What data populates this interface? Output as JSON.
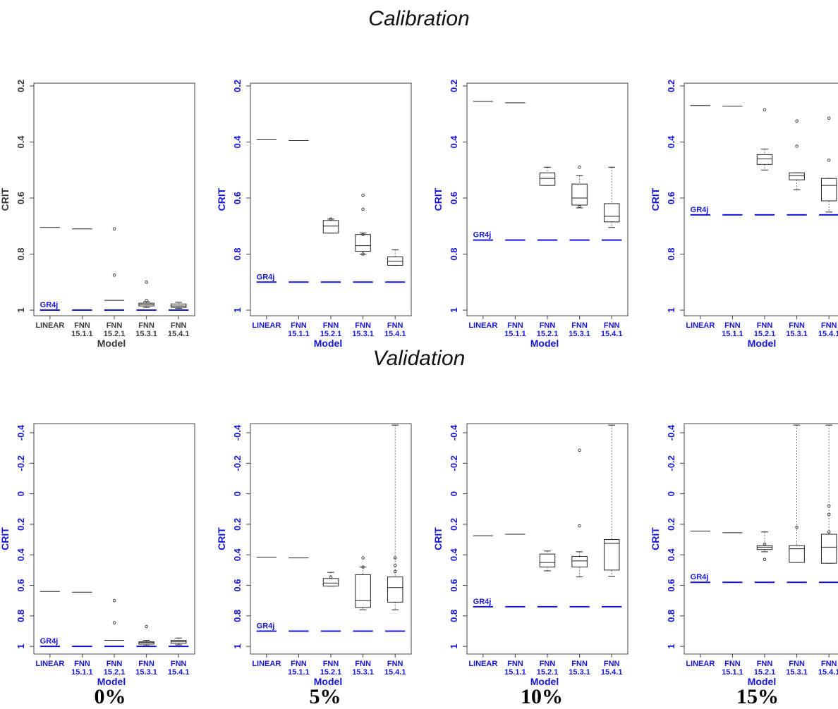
{
  "titles": {
    "calibration": "Calibration",
    "validation": "Validation"
  },
  "percent_labels": [
    "0%",
    "5%",
    "10%",
    "15%"
  ],
  "colors": {
    "blue": "#1515d8",
    "dark": "#3a3a3a",
    "box": "#222222"
  },
  "chart_data": [
    {
      "type": "box",
      "row": "Calibration",
      "percent": "0%",
      "ylabel": "CRIT",
      "xlabel": "Model",
      "label_color": "dark",
      "y_reversed": true,
      "ylim": [
        0.19,
        1.02
      ],
      "yticks": [
        0.2,
        0.4,
        0.6,
        0.8,
        1
      ],
      "ytick_labels": [
        "0.2",
        "0.4",
        "0.6",
        "0.8",
        "1"
      ],
      "categories": [
        "LINEAR",
        "FNN\n15.1.1",
        "FNN\n15.2.1",
        "FNN\n15.3.1",
        "FNN\n15.4.1"
      ],
      "reference": {
        "name": "GR4j",
        "value": 1.0
      },
      "boxes": [
        {
          "line": 0.705
        },
        {
          "line": 0.71
        },
        {
          "line": 0.965,
          "outliers": [
            0.71,
            0.875
          ]
        },
        {
          "q1": 0.975,
          "median": 0.98,
          "q3": 0.985,
          "whislo": 0.97,
          "whishi": 0.99,
          "outliers": [
            0.9,
            0.965
          ]
        },
        {
          "q1": 0.978,
          "median": 0.985,
          "q3": 0.99,
          "whislo": 0.972,
          "whishi": 0.994
        }
      ]
    },
    {
      "type": "box",
      "row": "Calibration",
      "percent": "5%",
      "ylabel": "CRIT",
      "xlabel": "Model",
      "label_color": "blue",
      "y_reversed": true,
      "ylim": [
        0.19,
        1.02
      ],
      "yticks": [
        0.2,
        0.4,
        0.6,
        0.8,
        1
      ],
      "ytick_labels": [
        "0.2",
        "0.4",
        "0.6",
        "0.8",
        "1"
      ],
      "categories": [
        "LINEAR",
        "FNN\n15.1.1",
        "FNN\n15.2.1",
        "FNN\n15.3.1",
        "FNN\n15.4.1"
      ],
      "reference": {
        "name": "GR4j",
        "value": 0.9
      },
      "boxes": [
        {
          "line": 0.39
        },
        {
          "line": 0.395
        },
        {
          "q1": 0.68,
          "median": 0.7,
          "q3": 0.725,
          "whislo": 0.675,
          "whishi": 0.725,
          "outliers": [
            0.675
          ]
        },
        {
          "q1": 0.73,
          "median": 0.77,
          "q3": 0.79,
          "whislo": 0.725,
          "whishi": 0.8,
          "outliers": [
            0.59,
            0.64,
            0.73,
            0.8
          ]
        },
        {
          "q1": 0.81,
          "median": 0.825,
          "q3": 0.84,
          "whislo": 0.785,
          "whishi": 0.84
        }
      ]
    },
    {
      "type": "box",
      "row": "Calibration",
      "percent": "10%",
      "ylabel": "CRIT",
      "xlabel": "Model",
      "label_color": "blue",
      "y_reversed": true,
      "ylim": [
        0.19,
        1.02
      ],
      "yticks": [
        0.2,
        0.4,
        0.6,
        0.8,
        1
      ],
      "ytick_labels": [
        "0.2",
        "0.4",
        "0.6",
        "0.8",
        "1"
      ],
      "categories": [
        "LINEAR",
        "FNN\n15.1.1",
        "FNN\n15.2.1",
        "FNN\n15.3.1",
        "FNN\n15.4.1"
      ],
      "reference": {
        "name": "GR4j",
        "value": 0.75
      },
      "boxes": [
        {
          "line": 0.255
        },
        {
          "line": 0.26
        },
        {
          "q1": 0.51,
          "median": 0.53,
          "q3": 0.555,
          "whislo": 0.49,
          "whishi": 0.555
        },
        {
          "q1": 0.55,
          "median": 0.6,
          "q3": 0.625,
          "whislo": 0.52,
          "whishi": 0.635,
          "outliers": [
            0.49,
            0.63
          ]
        },
        {
          "q1": 0.62,
          "median": 0.665,
          "q3": 0.685,
          "whislo": 0.49,
          "whishi": 0.705
        }
      ]
    },
    {
      "type": "box",
      "row": "Calibration",
      "percent": "15%",
      "ylabel": "CRIT",
      "xlabel": "Model",
      "label_color": "blue",
      "y_reversed": true,
      "ylim": [
        0.19,
        1.02
      ],
      "yticks": [
        0.2,
        0.4,
        0.6,
        0.8,
        1
      ],
      "ytick_labels": [
        "0.2",
        "0.4",
        "0.6",
        "0.8",
        "1"
      ],
      "categories": [
        "LINEAR",
        "FNN\n15.1.1",
        "FNN\n15.2.1",
        "FNN\n15.3.1",
        "FNN\n15.4.1"
      ],
      "reference": {
        "name": "GR4j",
        "value": 0.66
      },
      "boxes": [
        {
          "line": 0.27
        },
        {
          "line": 0.272
        },
        {
          "q1": 0.445,
          "median": 0.46,
          "q3": 0.48,
          "whislo": 0.425,
          "whishi": 0.5,
          "outliers": [
            0.285
          ]
        },
        {
          "q1": 0.51,
          "median": 0.52,
          "q3": 0.535,
          "whislo": 0.51,
          "whishi": 0.57,
          "outliers": [
            0.325,
            0.415
          ]
        },
        {
          "q1": 0.53,
          "median": 0.555,
          "q3": 0.61,
          "whislo": 0.53,
          "whishi": 0.65,
          "outliers": [
            0.315,
            0.465
          ]
        }
      ]
    },
    {
      "type": "box",
      "row": "Validation",
      "percent": "0%",
      "ylabel": "CRIT",
      "xlabel": "Model",
      "label_color": "blue",
      "y_reversed": true,
      "ylim": [
        -0.46,
        1.05
      ],
      "yticks": [
        -0.4,
        -0.2,
        0,
        0.2,
        0.4,
        0.6,
        0.8,
        1
      ],
      "ytick_labels": [
        "-0.4",
        "-0.2",
        "0",
        "0.2",
        "0.4",
        "0.6",
        "0.8",
        "1"
      ],
      "categories": [
        "LINEAR",
        "FNN\n15.1.1",
        "FNN\n15.2.1",
        "FNN\n15.3.1",
        "FNN\n15.4.1"
      ],
      "reference": {
        "name": "GR4j",
        "value": 1.0
      },
      "boxes": [
        {
          "line": 0.64
        },
        {
          "line": 0.645
        },
        {
          "line": 0.96,
          "outliers": [
            0.7,
            0.845
          ]
        },
        {
          "q1": 0.97,
          "median": 0.975,
          "q3": 0.985,
          "whislo": 0.96,
          "whishi": 0.995,
          "outliers": [
            0.87
          ]
        },
        {
          "q1": 0.96,
          "median": 0.97,
          "q3": 0.98,
          "whislo": 0.945,
          "whishi": 0.99
        }
      ]
    },
    {
      "type": "box",
      "row": "Validation",
      "percent": "5%",
      "ylabel": "CRIT",
      "xlabel": "Model",
      "label_color": "blue",
      "y_reversed": true,
      "ylim": [
        -0.46,
        1.05
      ],
      "yticks": [
        -0.4,
        -0.2,
        0,
        0.2,
        0.4,
        0.6,
        0.8,
        1
      ],
      "ytick_labels": [
        "-0.4",
        "-0.2",
        "0",
        "0.2",
        "0.4",
        "0.6",
        "0.8",
        "1"
      ],
      "categories": [
        "LINEAR",
        "FNN\n15.1.1",
        "FNN\n15.2.1",
        "FNN\n15.3.1",
        "FNN\n15.4.1"
      ],
      "reference": {
        "name": "GR4j",
        "value": 0.9
      },
      "boxes": [
        {
          "line": 0.415
        },
        {
          "line": 0.42
        },
        {
          "q1": 0.555,
          "median": 0.585,
          "q3": 0.605,
          "whislo": 0.515,
          "whishi": 0.605,
          "outliers": [
            0.545
          ]
        },
        {
          "q1": 0.53,
          "median": 0.7,
          "q3": 0.745,
          "whislo": 0.48,
          "whishi": 0.76,
          "outliers": [
            0.42,
            0.48
          ]
        },
        {
          "q1": 0.545,
          "median": 0.615,
          "q3": 0.71,
          "whislo": -0.45,
          "whishi": 0.76,
          "outliers": [
            0.42,
            0.47,
            0.51
          ]
        }
      ]
    },
    {
      "type": "box",
      "row": "Validation",
      "percent": "10%",
      "ylabel": "CRIT",
      "xlabel": "Model",
      "label_color": "blue",
      "y_reversed": true,
      "ylim": [
        -0.46,
        1.05
      ],
      "yticks": [
        -0.4,
        -0.2,
        0,
        0.2,
        0.4,
        0.6,
        0.8,
        1
      ],
      "ytick_labels": [
        "-0.4",
        "-0.2",
        "0",
        "0.2",
        "0.4",
        "0.6",
        "0.8",
        "1"
      ],
      "categories": [
        "LINEAR",
        "FNN\n15.1.1",
        "FNN\n15.2.1",
        "FNN\n15.3.1",
        "FNN\n15.4.1"
      ],
      "reference": {
        "name": "GR4j",
        "value": 0.74
      },
      "boxes": [
        {
          "line": 0.275
        },
        {
          "line": 0.265
        },
        {
          "q1": 0.395,
          "median": 0.45,
          "q3": 0.48,
          "whislo": 0.375,
          "whishi": 0.505
        },
        {
          "q1": 0.41,
          "median": 0.44,
          "q3": 0.48,
          "whislo": 0.38,
          "whishi": 0.545,
          "outliers": [
            -0.285,
            0.21
          ]
        },
        {
          "q1": 0.3,
          "median": 0.325,
          "q3": 0.5,
          "whislo": -0.45,
          "whishi": 0.54
        }
      ]
    },
    {
      "type": "box",
      "row": "Validation",
      "percent": "15%",
      "ylabel": "CRIT",
      "xlabel": "Model",
      "label_color": "blue",
      "y_reversed": true,
      "ylim": [
        -0.46,
        1.05
      ],
      "yticks": [
        -0.4,
        -0.2,
        0,
        0.2,
        0.4,
        0.6,
        0.8,
        1
      ],
      "ytick_labels": [
        "-0.4",
        "-0.2",
        "0",
        "0.2",
        "0.4",
        "0.6",
        "0.8",
        "1"
      ],
      "categories": [
        "LINEAR",
        "FNN\n15.1.1",
        "FNN\n15.2.1",
        "FNN\n15.3.1",
        "FNN\n15.4.1"
      ],
      "reference": {
        "name": "GR4j",
        "value": 0.58
      },
      "boxes": [
        {
          "line": 0.245
        },
        {
          "line": 0.255
        },
        {
          "q1": 0.34,
          "median": 0.35,
          "q3": 0.365,
          "whislo": 0.25,
          "whishi": 0.38,
          "outliers": [
            0.33,
            0.43
          ]
        },
        {
          "q1": 0.34,
          "median": 0.36,
          "q3": 0.45,
          "whislo": -0.45,
          "whishi": 0.45,
          "outliers": [
            0.22
          ]
        },
        {
          "q1": 0.265,
          "median": 0.35,
          "q3": 0.455,
          "whislo": -0.45,
          "whishi": 0.455,
          "outliers": [
            0.08,
            0.135,
            0.25
          ]
        }
      ]
    }
  ]
}
